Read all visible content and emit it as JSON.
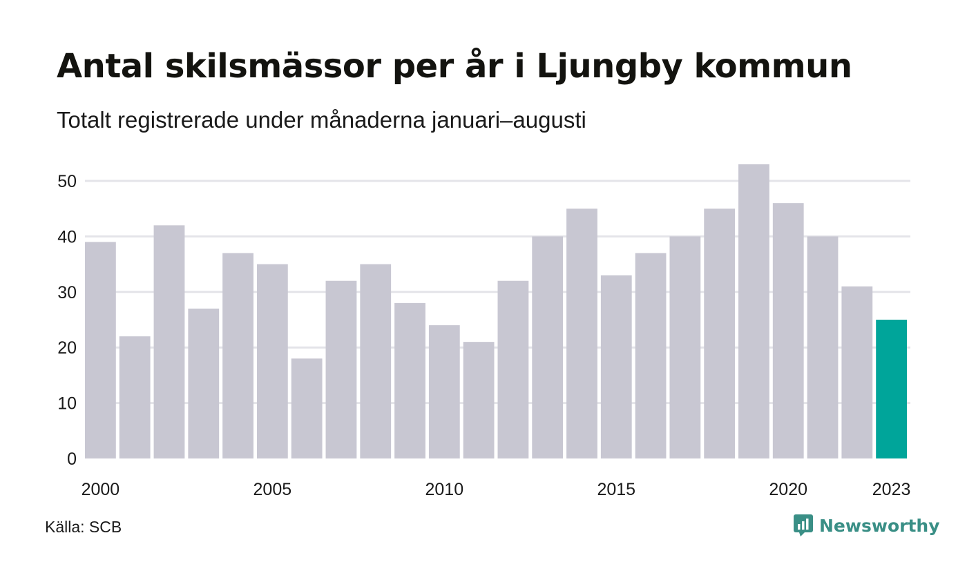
{
  "title": "Antal skilsmässor per år i Ljungby kommun",
  "subtitle": "Totalt registrerade under månaderna januari–augusti",
  "source": "Källa: SCB",
  "brand": "Newsworthy",
  "colors": {
    "bar": "#c8c7d2",
    "highlight": "#00a59a",
    "grid": "#e4e4e9",
    "brand": "#3a8f86"
  },
  "chart_data": {
    "type": "bar",
    "categories": [
      "2000",
      "2001",
      "2002",
      "2003",
      "2004",
      "2005",
      "2006",
      "2007",
      "2008",
      "2009",
      "2010",
      "2011",
      "2012",
      "2013",
      "2014",
      "2015",
      "2016",
      "2017",
      "2018",
      "2019",
      "2020",
      "2021",
      "2022",
      "2023"
    ],
    "values": [
      39,
      22,
      42,
      27,
      37,
      35,
      18,
      32,
      35,
      28,
      24,
      21,
      32,
      40,
      45,
      33,
      37,
      40,
      45,
      53,
      46,
      40,
      31,
      25
    ],
    "x_tick_labels": [
      "2000",
      "2005",
      "2010",
      "2015",
      "2020",
      "2023"
    ],
    "y_ticks": [
      0,
      10,
      20,
      30,
      40,
      50
    ],
    "ylim": [
      0,
      55
    ],
    "highlight_category": "2023",
    "grid": true
  }
}
